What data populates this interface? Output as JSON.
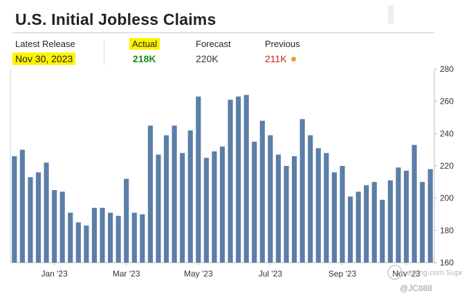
{
  "title": "U.S. Initial Jobless Claims",
  "stats": {
    "latest_release_label": "Latest Release",
    "latest_release_value": "Nov 30, 2023",
    "actual_label": "Actual",
    "actual_value": "218K",
    "forecast_label": "Forecast",
    "forecast_value": "220K",
    "previous_label": "Previous",
    "previous_value": "211K"
  },
  "colors": {
    "bar": "#5b7fa8",
    "actual": "#1a8a1a",
    "previous": "#d22222",
    "highlight": "#fff200"
  },
  "watermark": {
    "community": "Investing.com Super Community",
    "handle": "@JC888"
  },
  "chart_data": {
    "type": "bar",
    "title": "U.S. Initial Jobless Claims",
    "xlabel": "",
    "ylabel": "",
    "ylim": [
      160,
      280
    ],
    "yticks": [
      160,
      180,
      200,
      220,
      240,
      260,
      280
    ],
    "y_axis_side": "right",
    "grid": false,
    "legend": "none",
    "x_tick_labels": [
      {
        "label": "Jan '23",
        "index": 5
      },
      {
        "label": "Mar '23",
        "index": 14
      },
      {
        "label": "May '23",
        "index": 23
      },
      {
        "label": "Jul '23",
        "index": 32
      },
      {
        "label": "Sep '23",
        "index": 41
      },
      {
        "label": "Nov '23",
        "index": 49
      }
    ],
    "values": [
      226,
      230,
      213,
      216,
      222,
      205,
      204,
      191,
      185,
      183,
      194,
      194,
      191,
      189,
      212,
      191,
      190,
      245,
      227,
      239,
      245,
      228,
      242,
      263,
      225,
      229,
      232,
      261,
      263,
      264,
      235,
      248,
      239,
      227,
      220,
      226,
      249,
      239,
      231,
      228,
      216,
      220,
      201,
      204,
      208,
      210,
      199,
      211,
      219,
      217,
      233,
      210,
      218
    ]
  }
}
